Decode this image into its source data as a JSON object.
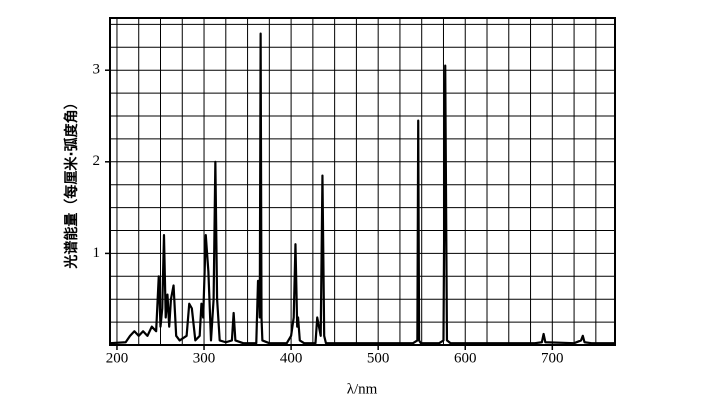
{
  "chart_data": {
    "type": "line",
    "y_label": "光谱能量（每厘米·弧度角）",
    "x_label": "λ/nm",
    "xlim": [
      192,
      772
    ],
    "ylim": [
      0,
      3.57
    ],
    "xticks": [
      200,
      300,
      400,
      500,
      600,
      700
    ],
    "yticks": [
      1,
      2,
      3
    ],
    "xgrid": [
      200,
      225,
      250,
      275,
      300,
      325,
      350,
      375,
      400,
      425,
      450,
      475,
      500,
      525,
      550,
      575,
      600,
      625,
      650,
      675,
      700,
      725,
      750
    ],
    "ygrid": [
      0.25,
      0.5,
      0.75,
      1,
      1.25,
      1.5,
      1.75,
      2,
      2.25,
      2.5,
      2.75,
      3,
      3.25,
      3.5
    ],
    "grid": true,
    "series": [
      {
        "color": "#000000",
        "x": [
          192,
          210,
          215,
          220,
          225,
          230,
          235,
          240,
          245,
          248,
          250,
          252,
          254,
          256,
          258,
          260,
          262,
          265,
          268,
          272,
          280,
          283,
          286,
          290,
          295,
          297,
          299,
          302,
          305,
          308,
          311,
          313,
          315,
          318,
          325,
          332,
          334,
          336,
          345,
          360,
          362,
          363,
          364,
          365,
          366,
          367,
          375,
          395,
          400,
          403,
          405,
          407,
          408,
          410,
          415,
          428,
          430,
          432,
          434,
          436,
          438,
          440,
          450,
          540,
          545,
          546,
          547,
          549,
          570,
          575,
          577,
          579,
          583,
          680,
          688,
          690,
          692,
          725,
          733,
          735,
          737,
          745,
          772
        ],
        "values": [
          0.02,
          0.03,
          0.1,
          0.15,
          0.1,
          0.15,
          0.1,
          0.2,
          0.15,
          0.75,
          0.2,
          0.4,
          1.2,
          0.3,
          0.55,
          0.2,
          0.5,
          0.65,
          0.1,
          0.05,
          0.1,
          0.45,
          0.4,
          0.05,
          0.1,
          0.45,
          0.3,
          1.2,
          0.8,
          0.05,
          0.5,
          2.0,
          0.5,
          0.05,
          0.03,
          0.05,
          0.35,
          0.05,
          0.02,
          0.02,
          0.7,
          0.7,
          0.3,
          3.4,
          0.3,
          0.05,
          0.02,
          0.02,
          0.1,
          0.3,
          1.1,
          0.2,
          0.3,
          0.05,
          0.02,
          0.02,
          0.3,
          0.2,
          0.1,
          1.85,
          0.1,
          0.02,
          0.02,
          0.02,
          0.05,
          2.45,
          0.05,
          0.02,
          0.02,
          0.05,
          3.05,
          0.05,
          0.02,
          0.02,
          0.03,
          0.12,
          0.03,
          0.02,
          0.05,
          0.1,
          0.03,
          0.02,
          0.02
        ]
      }
    ]
  }
}
